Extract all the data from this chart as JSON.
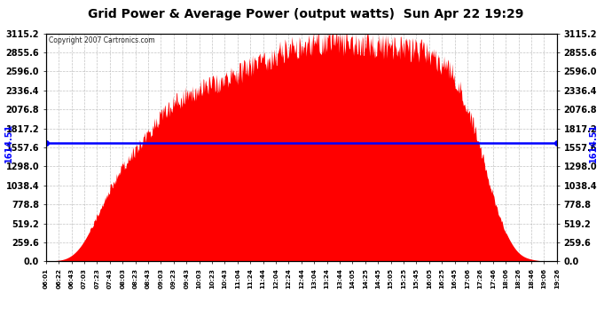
{
  "title": "Grid Power & Average Power (output watts)  Sun Apr 22 19:29",
  "copyright": "Copyright 2007 Cartronics.com",
  "avg_power": 1614.51,
  "y_max": 3115.2,
  "y_min": 0.0,
  "y_ticks": [
    0.0,
    259.6,
    519.2,
    778.8,
    1038.4,
    1298.0,
    1557.6,
    1817.2,
    2076.8,
    2336.4,
    2596.0,
    2855.6,
    3115.2
  ],
  "x_labels": [
    "06:01",
    "06:22",
    "06:43",
    "07:03",
    "07:23",
    "07:43",
    "08:03",
    "08:23",
    "08:43",
    "09:03",
    "09:23",
    "09:43",
    "10:03",
    "10:23",
    "10:43",
    "11:04",
    "11:24",
    "11:44",
    "12:04",
    "12:24",
    "12:44",
    "13:04",
    "13:24",
    "13:44",
    "14:05",
    "14:25",
    "14:45",
    "15:05",
    "15:25",
    "15:45",
    "16:05",
    "16:25",
    "16:45",
    "17:06",
    "17:26",
    "17:46",
    "18:06",
    "18:26",
    "18:46",
    "19:06",
    "19:26"
  ],
  "fill_color": "#ff0000",
  "line_color": "#0000ff",
  "bg_color": "#ffffff",
  "grid_color": "#aaaaaa",
  "title_color": "#000000",
  "curve_data_y": [
    5,
    15,
    80,
    280,
    620,
    980,
    1280,
    1520,
    1750,
    1980,
    2150,
    2260,
    2350,
    2420,
    2480,
    2560,
    2650,
    2730,
    2820,
    2900,
    2950,
    2980,
    3000,
    2990,
    2970,
    2960,
    2940,
    2920,
    2900,
    2880,
    2820,
    2700,
    2500,
    2100,
    1550,
    900,
    400,
    120,
    30,
    5,
    2
  ]
}
